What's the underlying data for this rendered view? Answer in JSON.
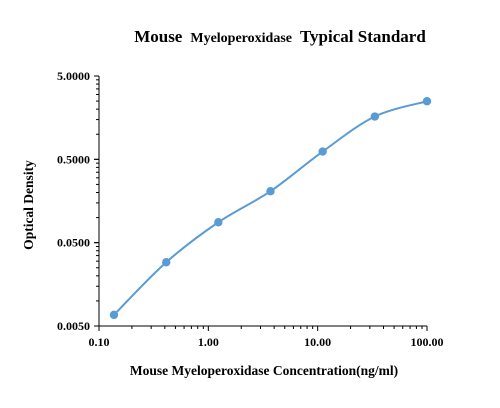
{
  "chart_data": {
    "type": "line",
    "title": {
      "part1": "Mouse",
      "part2": "Myeloperoxidase",
      "part3": "Typical Standard"
    },
    "xlabel": "Mouse Myeloperoxidase Concentration(ng/ml)",
    "ylabel": "Optical Density",
    "x_scale": "log",
    "y_scale": "log",
    "xlim": [
      0.1,
      100
    ],
    "ylim": [
      0.005,
      5
    ],
    "xticks": [
      "0.10",
      "1.00",
      "10.00",
      "100.00"
    ],
    "yticks": [
      "0.0050",
      "0.0500",
      "0.5000",
      "5.0000"
    ],
    "grid": false,
    "legend": false,
    "series": [
      {
        "color": "#5b9bd5",
        "x": [
          0.137,
          0.412,
          1.235,
          3.704,
          11.11,
          33.33,
          100
        ],
        "y": [
          0.0068,
          0.0291,
          0.0879,
          0.2071,
          0.6199,
          1.632,
          2.49
        ]
      }
    ]
  }
}
